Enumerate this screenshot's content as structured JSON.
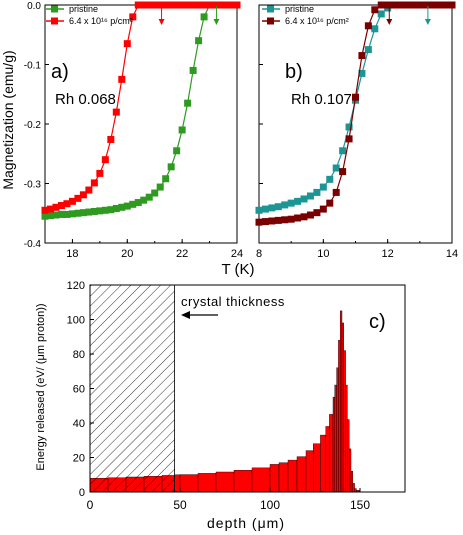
{
  "colors": {
    "red": "#ff0000",
    "green": "#2e9a1f",
    "teal": "#1c9595",
    "darkred": "#7a0000",
    "bar_red": "#ff0000"
  },
  "figure": {
    "shared_ylabel": "Magnetization (emu/g)",
    "shared_xlabel": "T (K)"
  },
  "chart_data": [
    {
      "id": "a",
      "type": "scatter",
      "panel_letter": "a)",
      "annotation": "Rh 0.068",
      "xlim": [
        17,
        24
      ],
      "ylim": [
        -0.4,
        0.0
      ],
      "xticks": [
        "18",
        "20",
        "22",
        "24"
      ],
      "yticks": [
        "0.0",
        "-0.1",
        "-0.2",
        "-0.3",
        "-0.4"
      ],
      "legend": [
        "pristine",
        "6.4 x 10¹⁶ p/cm²"
      ],
      "arrows_x": [
        21.25,
        23.25
      ],
      "series": [
        {
          "name": "pristine",
          "color_key": "green",
          "x": [
            17.0,
            17.2,
            17.4,
            17.6,
            17.8,
            18.0,
            18.2,
            18.4,
            18.6,
            18.8,
            19.0,
            19.2,
            19.4,
            19.6,
            19.8,
            20.0,
            20.2,
            20.4,
            20.6,
            20.8,
            21.0,
            21.2,
            21.4,
            21.6,
            21.8,
            22.0,
            22.2,
            22.4,
            22.6,
            22.8,
            23.0,
            23.2,
            23.4,
            23.6,
            23.8,
            24.0
          ],
          "y": [
            -0.355,
            -0.354,
            -0.353,
            -0.352,
            -0.352,
            -0.351,
            -0.35,
            -0.349,
            -0.348,
            -0.347,
            -0.346,
            -0.345,
            -0.344,
            -0.342,
            -0.34,
            -0.338,
            -0.335,
            -0.332,
            -0.328,
            -0.323,
            -0.316,
            -0.306,
            -0.292,
            -0.272,
            -0.245,
            -0.21,
            -0.165,
            -0.11,
            -0.06,
            -0.02,
            0.0,
            0.0,
            0.0,
            0.0,
            0.0,
            0.0
          ]
        },
        {
          "name": "6.4 x 10¹⁶ p/cm²",
          "color_key": "red",
          "x": [
            17.0,
            17.2,
            17.4,
            17.6,
            17.8,
            18.0,
            18.2,
            18.4,
            18.6,
            18.8,
            19.0,
            19.2,
            19.4,
            19.6,
            19.8,
            20.0,
            20.2,
            20.4,
            20.6,
            20.8,
            21.0,
            21.2,
            21.4,
            21.6,
            21.8,
            22.0,
            22.2,
            22.4,
            22.6,
            22.8,
            23.0,
            23.2,
            23.4,
            23.6,
            23.8,
            24.0
          ],
          "y": [
            -0.345,
            -0.343,
            -0.34,
            -0.337,
            -0.334,
            -0.33,
            -0.325,
            -0.319,
            -0.311,
            -0.299,
            -0.283,
            -0.26,
            -0.226,
            -0.18,
            -0.125,
            -0.065,
            -0.02,
            0.0,
            0.0,
            0.0,
            0.0,
            0.0,
            0.0,
            0.0,
            0.0,
            0.0,
            0.0,
            0.0,
            0.0,
            0.0,
            0.0,
            0.0,
            0.0,
            0.0,
            0.0,
            0.0
          ]
        }
      ]
    },
    {
      "id": "b",
      "type": "scatter",
      "panel_letter": "b)",
      "annotation": "Rh 0.107",
      "xlim": [
        8,
        14
      ],
      "ylim": [
        -0.4,
        0.0
      ],
      "xticks": [
        "8",
        "10",
        "12",
        "14"
      ],
      "legend": [
        "pristine",
        "6.4 x 10¹⁶ p/cm²"
      ],
      "arrows_x": [
        12.05,
        13.25
      ],
      "series": [
        {
          "name": "pristine",
          "color_key": "teal",
          "x": [
            8.0,
            8.2,
            8.4,
            8.6,
            8.8,
            9.0,
            9.2,
            9.4,
            9.6,
            9.8,
            10.0,
            10.2,
            10.4,
            10.6,
            10.8,
            11.0,
            11.2,
            11.4,
            11.6,
            11.8,
            12.0,
            12.2,
            12.4,
            12.6,
            12.8,
            13.0,
            13.2,
            13.4,
            13.6,
            13.8,
            14.0
          ],
          "y": [
            -0.345,
            -0.343,
            -0.341,
            -0.339,
            -0.336,
            -0.333,
            -0.33,
            -0.326,
            -0.321,
            -0.315,
            -0.306,
            -0.293,
            -0.274,
            -0.245,
            -0.205,
            -0.16,
            -0.115,
            -0.075,
            -0.04,
            -0.015,
            -0.005,
            0.0,
            0.0,
            0.0,
            0.0,
            0.0,
            0.0,
            0.0,
            0.0,
            0.0,
            0.0
          ]
        },
        {
          "name": "6.4 x 10¹⁶ p/cm²",
          "color_key": "darkred",
          "x": [
            8.0,
            8.2,
            8.4,
            8.6,
            8.8,
            9.0,
            9.2,
            9.4,
            9.6,
            9.8,
            10.0,
            10.2,
            10.4,
            10.6,
            10.8,
            11.0,
            11.2,
            11.4,
            11.6,
            11.8,
            12.0,
            12.2,
            12.4,
            12.6,
            12.8,
            13.0,
            13.2,
            13.4,
            13.6,
            13.8,
            14.0
          ],
          "y": [
            -0.365,
            -0.364,
            -0.363,
            -0.362,
            -0.361,
            -0.36,
            -0.358,
            -0.356,
            -0.353,
            -0.349,
            -0.343,
            -0.333,
            -0.315,
            -0.28,
            -0.225,
            -0.155,
            -0.085,
            -0.035,
            -0.008,
            0.0,
            0.0,
            0.0,
            0.0,
            0.0,
            0.0,
            0.0,
            0.0,
            0.0,
            0.0,
            0.0,
            0.0
          ]
        }
      ]
    },
    {
      "id": "c",
      "type": "area",
      "panel_letter": "c)",
      "xlabel": "depth (μm)",
      "ylabel": "Energy released  (eV/ (μm proton))",
      "xlim": [
        0,
        175
      ],
      "ylim": [
        0,
        120
      ],
      "xticks": [
        "0",
        "50",
        "100",
        "150"
      ],
      "yticks": [
        "0",
        "20",
        "40",
        "60",
        "80",
        "100",
        "120"
      ],
      "annotation": "crystal thickness",
      "hatched_region": [
        0,
        47
      ],
      "x": [
        0,
        10,
        20,
        30,
        40,
        47,
        50,
        60,
        70,
        80,
        90,
        100,
        105,
        110,
        115,
        120,
        124,
        128,
        131,
        133,
        135,
        136,
        137,
        138,
        139,
        140,
        141,
        142,
        143,
        144,
        145,
        146,
        147,
        148,
        150,
        175
      ],
      "y": [
        8,
        8.3,
        8.7,
        9.1,
        9.6,
        10,
        10.1,
        10.8,
        11.6,
        12.6,
        14,
        16,
        17,
        18.5,
        20.5,
        24,
        28,
        33,
        38,
        45,
        55,
        62,
        72,
        88,
        105,
        98,
        82,
        62,
        42,
        25,
        12,
        5,
        2,
        1,
        0,
        0
      ]
    }
  ]
}
